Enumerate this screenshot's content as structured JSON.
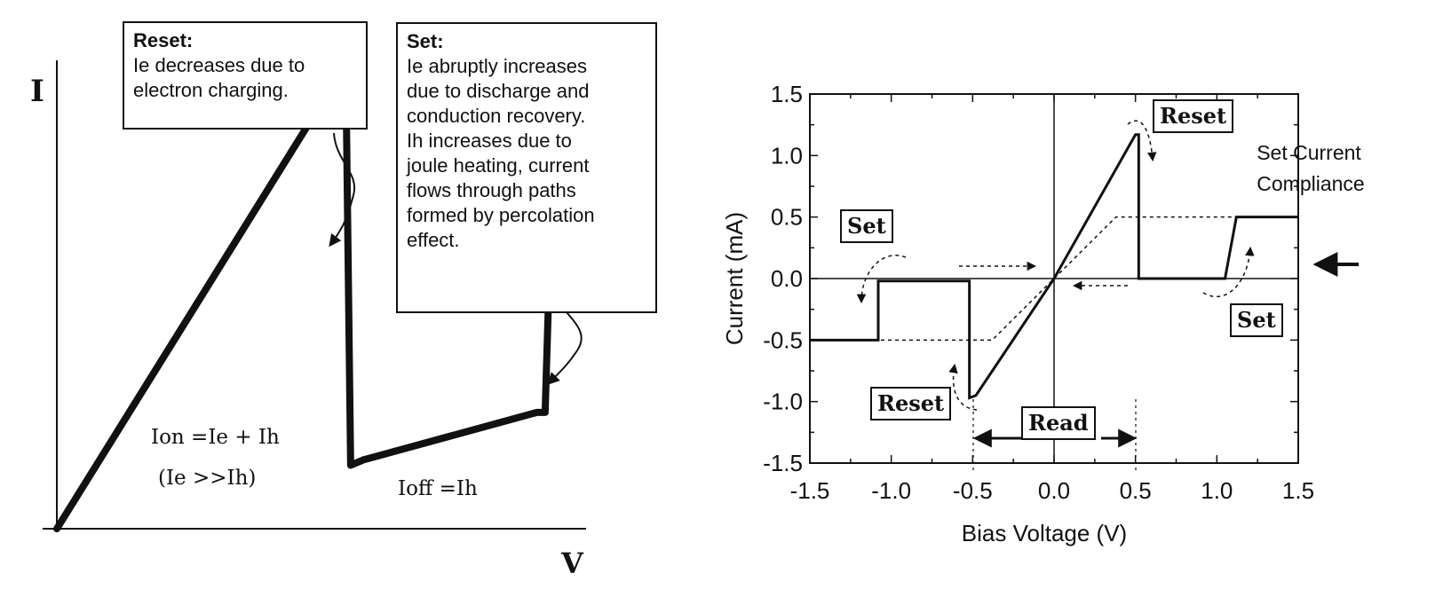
{
  "left_panel": {
    "y_axis_label": "I",
    "x_axis_label": "V",
    "reset_box": {
      "title": "Reset:",
      "lines": [
        "Ie decreases due to",
        "electron charging."
      ]
    },
    "set_box": {
      "title": "Set:",
      "lines": [
        "Ie  abruptly increases",
        "due to discharge and",
        "conduction recovery.",
        "Ih  increases due to",
        "joule heating, current",
        "flows through paths",
        "formed by percolation",
        "effect."
      ]
    },
    "eq_on": "Ion =Ie + Ih",
    "eq_cond": "(Ie >>Ih)",
    "eq_off": "Ioff =Ih"
  },
  "chart_data": [
    {
      "type": "line",
      "title": "",
      "xlabel": "V",
      "ylabel": "I",
      "series": [
        {
          "values": [
            [
              0.0,
              0.0
            ],
            [
              0.62,
              0.78
            ],
            [
              0.66,
              0.8
            ],
            [
              0.7,
              0.76
            ],
            [
              0.71,
              0.12
            ],
            [
              0.74,
              0.13
            ],
            [
              1.16,
              0.22
            ],
            [
              1.18,
              0.22
            ],
            [
              1.19,
              0.48
            ]
          ]
        }
      ]
    },
    {
      "type": "line",
      "title": "",
      "xlabel": "Bias Voltage (V)",
      "ylabel": "Current (mA)",
      "xlim": [
        -1.5,
        1.5
      ],
      "ylim": [
        -1.5,
        1.5
      ],
      "xticks": [
        "-1.5",
        "-1.0",
        "-0.5",
        "0.0",
        "0.5",
        "1.0",
        "1.5"
      ],
      "yticks": [
        "1.5",
        "1.0",
        "0.5",
        "0.0",
        "-0.5",
        "-1.0",
        "-1.5"
      ],
      "series": [
        {
          "style": "solid",
          "values": [
            [
              -1.5,
              -0.5
            ],
            [
              -1.08,
              -0.5
            ],
            [
              -1.08,
              -0.02
            ],
            [
              -0.52,
              -0.02
            ],
            [
              -0.52,
              -0.97
            ],
            [
              -0.48,
              -0.95
            ],
            [
              0.0,
              0.0
            ],
            [
              0.5,
              1.17
            ],
            [
              0.52,
              1.17
            ],
            [
              0.52,
              0.0
            ],
            [
              1.05,
              0.0
            ],
            [
              1.12,
              0.5
            ],
            [
              1.5,
              0.5
            ]
          ]
        },
        {
          "style": "dashed",
          "values": [
            [
              -1.5,
              -0.5
            ],
            [
              -0.5,
              -0.5
            ],
            [
              -0.38,
              -0.5
            ],
            [
              0.0,
              0.0
            ],
            [
              0.38,
              0.5
            ],
            [
              1.5,
              0.5
            ]
          ]
        }
      ],
      "annotations": {
        "reset_top": "Reset",
        "reset_bottom": "Reset",
        "set_left": "Set",
        "set_right": "Set",
        "read": "Read",
        "compliance_line1": "Set Current",
        "compliance_line2": "Compliance"
      }
    }
  ]
}
